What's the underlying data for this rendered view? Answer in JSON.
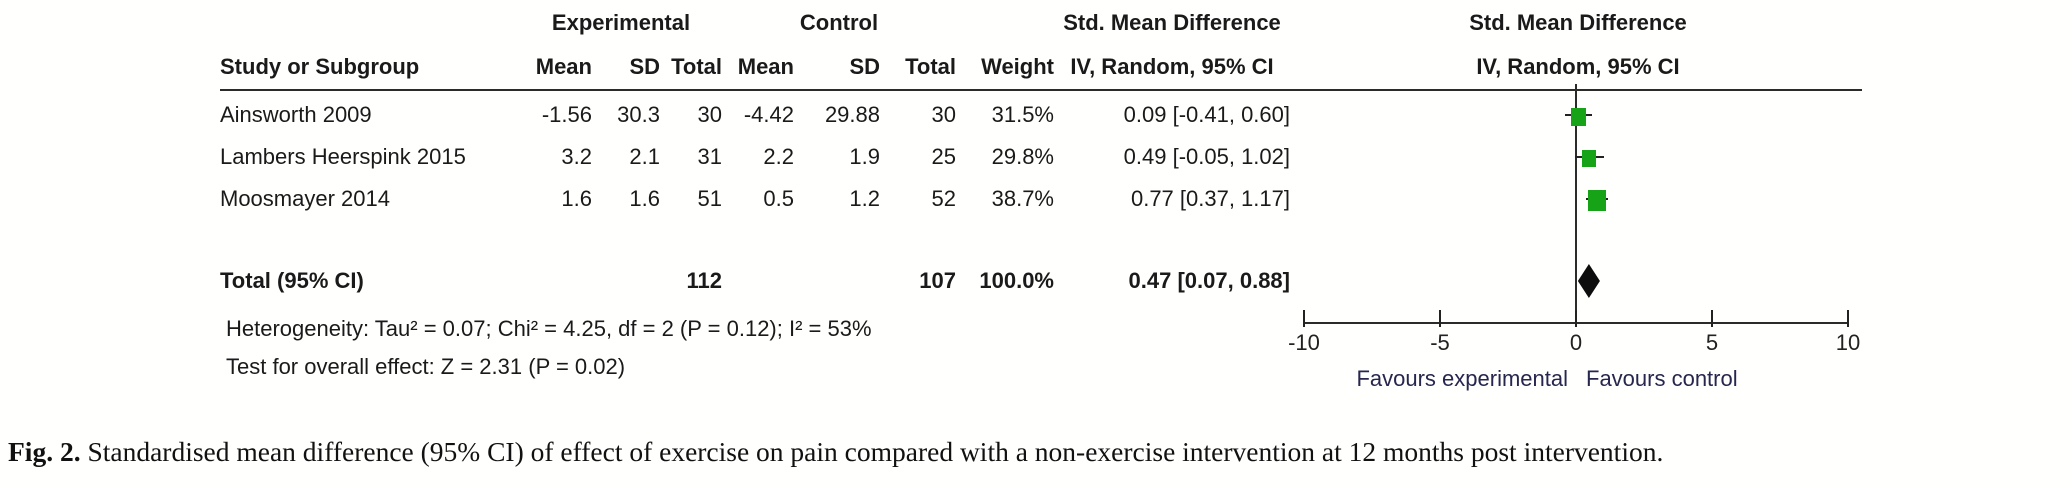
{
  "forest_plot": {
    "group_headers": {
      "experimental": "Experimental",
      "control": "Control",
      "smd_left": "Std. Mean Difference",
      "smd_right": "Std. Mean Difference"
    },
    "column_headers": {
      "study": "Study or Subgroup",
      "mean_exp": "Mean",
      "sd_exp": "SD",
      "total_exp": "Total",
      "mean_ctrl": "Mean",
      "sd_ctrl": "SD",
      "total_ctrl": "Total",
      "weight": "Weight",
      "iv_left": "IV, Random, 95% CI",
      "iv_right": "IV, Random, 95% CI"
    },
    "studies": [
      {
        "name": "Ainsworth 2009",
        "mean_exp": "-1.56",
        "sd_exp": "30.3",
        "total_exp": "30",
        "mean_ctrl": "-4.42",
        "sd_ctrl": "29.88",
        "total_ctrl": "30",
        "weight": "31.5%",
        "ci_label": "0.09 [-0.41, 0.60]"
      },
      {
        "name": "Lambers Heerspink 2015",
        "mean_exp": "3.2",
        "sd_exp": "2.1",
        "total_exp": "31",
        "mean_ctrl": "2.2",
        "sd_ctrl": "1.9",
        "total_ctrl": "25",
        "weight": "29.8%",
        "ci_label": "0.49 [-0.05, 1.02]"
      },
      {
        "name": "Moosmayer 2014",
        "mean_exp": "1.6",
        "sd_exp": "1.6",
        "total_exp": "51",
        "mean_ctrl": "0.5",
        "sd_ctrl": "1.2",
        "total_ctrl": "52",
        "weight": "38.7%",
        "ci_label": "0.77 [0.37, 1.17]"
      }
    ],
    "total_row": {
      "name": "Total (95% CI)",
      "total_exp": "112",
      "total_ctrl": "107",
      "weight": "100.0%",
      "ci_label": "0.47 [0.07, 0.88]"
    },
    "heterogeneity": "Heterogeneity: Tau² = 0.07; Chi² = 4.25, df = 2 (P = 0.12); I² = 53%",
    "overall_effect": "Test for overall effect: Z = 2.31 (P = 0.02)"
  },
  "chart_data": {
    "type": "forest",
    "title": "Std. Mean Difference, IV, Random, 95% CI",
    "x_axis": {
      "range": [
        -10,
        10
      ],
      "ticks": [
        -10,
        -5,
        0,
        5,
        10
      ],
      "label_left": "Favours experimental",
      "label_right": "Favours control"
    },
    "studies": [
      {
        "name": "Ainsworth 2009",
        "smd": 0.09,
        "ci_low": -0.41,
        "ci_high": 0.6,
        "weight_pct": 31.5
      },
      {
        "name": "Lambers Heerspink 2015",
        "smd": 0.49,
        "ci_low": -0.05,
        "ci_high": 1.02,
        "weight_pct": 29.8
      },
      {
        "name": "Moosmayer 2014",
        "smd": 0.77,
        "ci_low": 0.37,
        "ci_high": 1.17,
        "weight_pct": 38.7
      }
    ],
    "pooled": {
      "name": "Total (95% CI)",
      "smd": 0.47,
      "ci_low": 0.07,
      "ci_high": 0.88
    },
    "marker_color": "#17a317",
    "line_color": "#222222"
  },
  "caption": {
    "label": "Fig. 2.",
    "text": "Standardised mean difference (95% CI) of effect of exercise on pain compared with a non-exercise intervention at 12 months post intervention."
  }
}
